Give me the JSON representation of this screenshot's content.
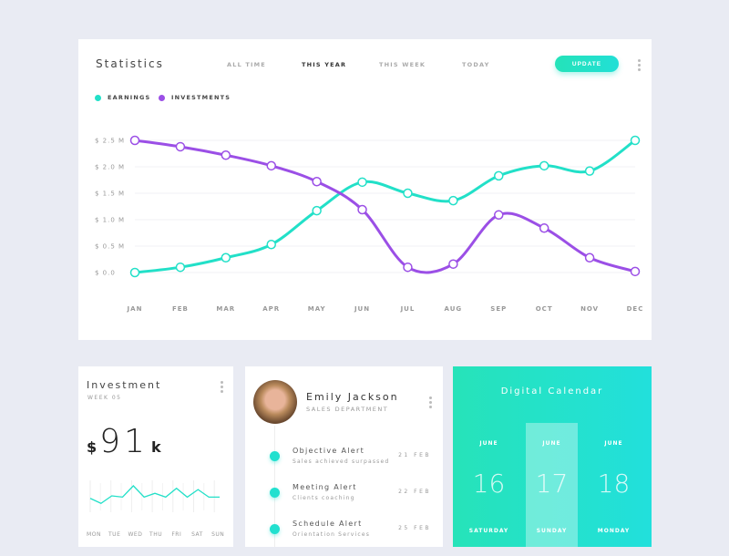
{
  "statistics": {
    "title": "Statistics",
    "tabs": [
      {
        "label": "ALL TIME"
      },
      {
        "label": "THIS YEAR",
        "active": true
      },
      {
        "label": "THIS WEEK"
      },
      {
        "label": "TODAY"
      }
    ],
    "update_label": "UPDATE"
  },
  "colors": {
    "earnings": "#22e0c8",
    "investments": "#9b4fe6",
    "accent": "#22e0cf"
  },
  "chart_data": {
    "type": "line",
    "smooth": true,
    "grid": true,
    "legend_placement": "top-left",
    "categories": [
      "JAN",
      "FEB",
      "MAR",
      "APR",
      "MAY",
      "JUN",
      "JUL",
      "AUG",
      "SEP",
      "OCT",
      "NOV",
      "DEC"
    ],
    "yticks": [
      "$ 0.0",
      "$ 0.5 M",
      "$ 1.0 M",
      "$ 1.5 M",
      "$ 2.0 M",
      "$ 2.5 M"
    ],
    "ylim": [
      0,
      2.5
    ],
    "series": [
      {
        "name": "EARNINGS",
        "values": [
          0.0,
          0.1,
          0.28,
          0.53,
          1.17,
          1.71,
          1.5,
          1.36,
          1.83,
          2.02,
          1.92,
          2.5
        ]
      },
      {
        "name": "INVESTMENTS",
        "values": [
          2.5,
          2.38,
          2.22,
          2.02,
          1.72,
          1.19,
          0.1,
          0.16,
          1.09,
          0.84,
          0.28,
          0.02
        ]
      }
    ]
  },
  "investment": {
    "title": "Investment",
    "week": "WEEK 05",
    "currency": "$",
    "amount": "91",
    "unit": "k",
    "days": [
      "MON",
      "TUE",
      "WED",
      "THU",
      "FRI",
      "SAT",
      "SUN"
    ],
    "sparkline": [
      3,
      1,
      4,
      3.5,
      8,
      3.5,
      5,
      3.5,
      7,
      3.5,
      6.5,
      3.5,
      3.5
    ]
  },
  "profile": {
    "name": "Emily Jackson",
    "department": "SALES DEPARTMENT",
    "alerts": [
      {
        "title": "Objective Alert",
        "subtitle": "Sales achieved surpassed",
        "date": "21 FEB"
      },
      {
        "title": "Meeting Alert",
        "subtitle": "Clients coaching",
        "date": "22 FEB"
      },
      {
        "title": "Schedule Alert",
        "subtitle": "Orientation Services",
        "date": "25 FEB"
      }
    ]
  },
  "calendar": {
    "title": "Digital Calendar",
    "days": [
      {
        "month": "JUNE",
        "day": "16",
        "weekday": "SATURDAY"
      },
      {
        "month": "JUNE",
        "day": "17",
        "weekday": "SUNDAY",
        "selected": true
      },
      {
        "month": "JUNE",
        "day": "18",
        "weekday": "MONDAY"
      }
    ]
  }
}
